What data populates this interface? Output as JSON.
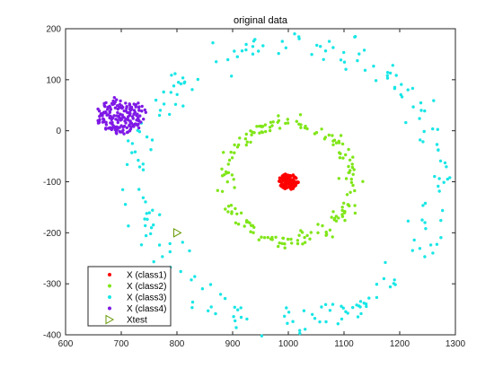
{
  "chart_data": {
    "type": "scatter",
    "title": "original data",
    "xlabel": "",
    "ylabel": "",
    "xlim": [
      600,
      1300
    ],
    "ylim": [
      -400,
      200
    ],
    "x_ticks": [
      600,
      700,
      800,
      900,
      1000,
      1100,
      1200,
      1300
    ],
    "y_ticks": [
      200,
      100,
      0,
      -100,
      -200,
      -300,
      -400
    ],
    "grid": false,
    "legend_position": "bottom-left",
    "series": [
      {
        "name": "X (class1)",
        "marker": "dot",
        "color": "#ff0000",
        "shape": "filled cluster",
        "center": [
          1000,
          -100
        ],
        "radius": 20,
        "count": 130
      },
      {
        "name": "X (class2)",
        "marker": "dot",
        "color": "#80e619",
        "shape": "ring",
        "center": [
          1000,
          -100
        ],
        "radius": 115,
        "count": 180
      },
      {
        "name": "X (class3)",
        "marker": "dot",
        "color": "#19e6e6",
        "shape": "ring",
        "center": [
          1000,
          -100
        ],
        "radius": 270,
        "count": 220
      },
      {
        "name": "X (class4)",
        "marker": "dot",
        "color": "#7f19e6",
        "shape": "filled cluster",
        "center": [
          700,
          30
        ],
        "radius": 45,
        "count": 180
      },
      {
        "name": "Xtest",
        "marker": "triangle-right",
        "color": "#669900",
        "points": [
          [
            800,
            -200
          ]
        ]
      }
    ]
  }
}
